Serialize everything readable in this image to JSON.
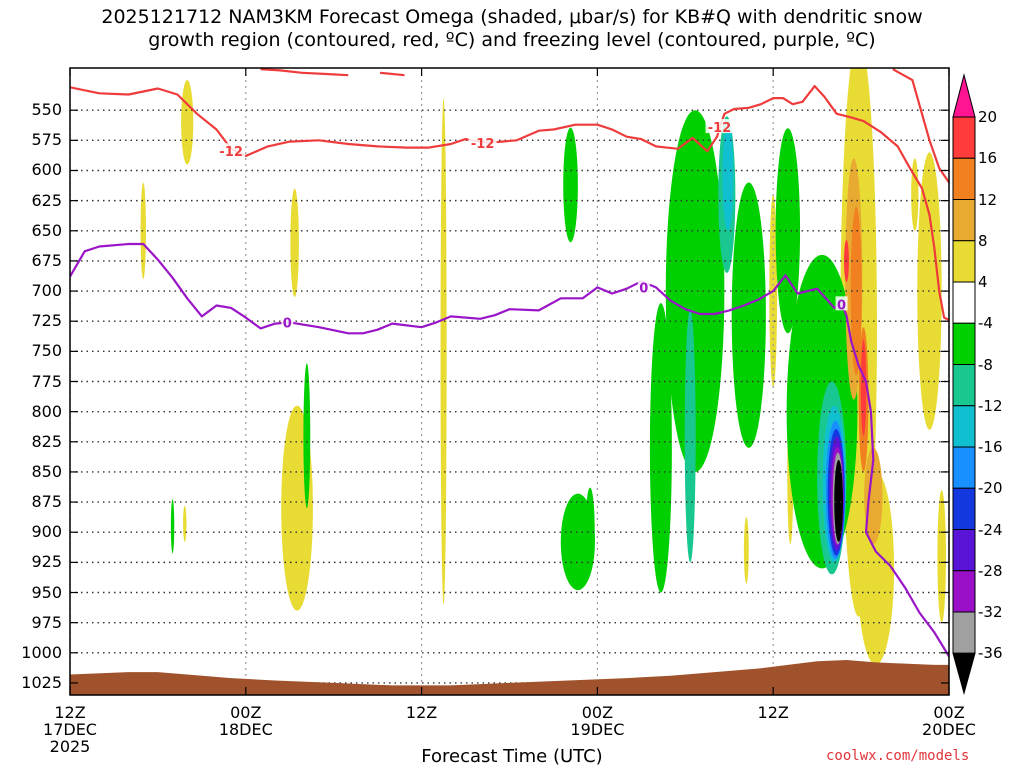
{
  "header": {
    "line1": "2025121712 NAM3KM Forecast Omega (shaded, μbar/s) for KB#Q with dendritic snow",
    "line2": "growth region (contoured, red, ºC) and freezing level (contoured, purple, ºC)"
  },
  "footer": {
    "xaxis_title": "Forecast Time (UTC)",
    "credit": "coolwx.com/models"
  },
  "colors": {
    "dgz_line": "#ee3b3b",
    "freezing_line": "#9a14c8",
    "terrain": "#a0522d",
    "grid": "#333333"
  },
  "chart_data": {
    "type": "time-height cross-section (contour/heatmap)",
    "x_unit": "hours since 2025-12-17 12Z",
    "x_range": [
      0,
      36
    ],
    "y_unit": "hPa",
    "y_range": [
      1035,
      515
    ],
    "x_ticks": [
      {
        "hour": 0,
        "line1": "12Z",
        "line2": "17DEC",
        "line3": "2025"
      },
      {
        "hour": 7.2,
        "line1": "00Z",
        "line2": "18DEC",
        "line3": ""
      },
      {
        "hour": 14.4,
        "line1": "12Z",
        "line2": "",
        "line3": ""
      },
      {
        "hour": 21.6,
        "line1": "00Z",
        "line2": "19DEC",
        "line3": ""
      },
      {
        "hour": 28.8,
        "line1": "12Z",
        "line2": "",
        "line3": ""
      },
      {
        "hour": 36,
        "line1": "00Z",
        "line2": "20DEC",
        "line3": ""
      }
    ],
    "y_ticks": [
      "550",
      "575",
      "600",
      "625",
      "650",
      "675",
      "700",
      "725",
      "750",
      "775",
      "800",
      "825",
      "850",
      "875",
      "900",
      "925",
      "950",
      "975",
      "1000",
      "1025"
    ],
    "colorbar": {
      "labels": [
        "20",
        "16",
        "12",
        "8",
        "4",
        "-4",
        "-8",
        "-12",
        "-16",
        "-20",
        "-24",
        "-28",
        "-32",
        "-36"
      ],
      "bins": [
        {
          "min": 20,
          "max": 24,
          "color": "#ff1493"
        },
        {
          "min": 16,
          "max": 20,
          "color": "#ff3b3b"
        },
        {
          "min": 12,
          "max": 16,
          "color": "#f08020"
        },
        {
          "min": 8,
          "max": 12,
          "color": "#e8aa30"
        },
        {
          "min": 4,
          "max": 8,
          "color": "#e8dc34"
        },
        {
          "min": -4,
          "max": 4,
          "color": "#ffffff"
        },
        {
          "min": -8,
          "max": -4,
          "color": "#00d000"
        },
        {
          "min": -12,
          "max": -8,
          "color": "#18c890"
        },
        {
          "min": -16,
          "max": -12,
          "color": "#10c0d0"
        },
        {
          "min": -20,
          "max": -16,
          "color": "#1890ff"
        },
        {
          "min": -24,
          "max": -20,
          "color": "#1438e0"
        },
        {
          "min": -28,
          "max": -24,
          "color": "#5a14d8"
        },
        {
          "min": -32,
          "max": -28,
          "color": "#9a10c8"
        },
        {
          "min": -36,
          "max": -32,
          "color": "#a0a0a0"
        },
        {
          "min": -40,
          "max": -36,
          "color": "#000000"
        }
      ]
    },
    "omega_regions": [
      {
        "value": -8,
        "t": 30.8,
        "p": 800,
        "dt": 2.9,
        "dp": 260
      },
      {
        "value": -8,
        "t": 29.4,
        "p": 650,
        "dt": 1.0,
        "dp": 170
      },
      {
        "value": -8,
        "t": 25.6,
        "p": 700,
        "dt": 2.4,
        "dp": 300
      },
      {
        "value": -8,
        "t": 27.8,
        "p": 720,
        "dt": 1.4,
        "dp": 220
      },
      {
        "value": -8,
        "t": 24.2,
        "p": 830,
        "dt": 0.9,
        "dp": 240
      },
      {
        "value": -8,
        "t": 20.8,
        "p": 908,
        "dt": 1.4,
        "dp": 80
      },
      {
        "value": -8,
        "t": 20.5,
        "p": 612,
        "dt": 0.6,
        "dp": 95
      },
      {
        "value": -8,
        "t": 9.7,
        "p": 820,
        "dt": 0.28,
        "dp": 120
      },
      {
        "value": -8,
        "t": 21.3,
        "p": 898,
        "dt": 0.38,
        "dp": 70
      },
      {
        "value": -8,
        "t": 24.6,
        "p": 710,
        "dt": 0.32,
        "dp": 50
      },
      {
        "value": -8,
        "t": 4.2,
        "p": 895,
        "dt": 0.14,
        "dp": 45
      },
      {
        "value": -12,
        "t": 26.9,
        "p": 620,
        "dt": 0.7,
        "dp": 130
      },
      {
        "value": -12,
        "t": 25.4,
        "p": 820,
        "dt": 0.45,
        "dp": 210
      },
      {
        "value": -12,
        "t": 31.2,
        "p": 855,
        "dt": 1.2,
        "dp": 160
      },
      {
        "value": -16,
        "t": 26.95,
        "p": 605,
        "dt": 0.45,
        "dp": 90
      },
      {
        "value": -16,
        "t": 31.3,
        "p": 860,
        "dt": 0.95,
        "dp": 130
      },
      {
        "value": -20,
        "t": 31.35,
        "p": 865,
        "dt": 0.8,
        "dp": 115
      },
      {
        "value": -24,
        "t": 31.38,
        "p": 867,
        "dt": 0.7,
        "dp": 105
      },
      {
        "value": -28,
        "t": 31.4,
        "p": 868,
        "dt": 0.6,
        "dp": 95
      },
      {
        "value": -32,
        "t": 31.42,
        "p": 870,
        "dt": 0.5,
        "dp": 82
      },
      {
        "value": -36,
        "t": 31.45,
        "p": 872,
        "dt": 0.42,
        "dp": 76
      },
      {
        "value": -40,
        "t": 31.48,
        "p": 874,
        "dt": 0.36,
        "dp": 68
      },
      {
        "value": 4,
        "t": 4.8,
        "p": 560,
        "dt": 0.5,
        "dp": 70
      },
      {
        "value": 4,
        "t": 3.0,
        "p": 650,
        "dt": 0.22,
        "dp": 80
      },
      {
        "value": 4,
        "t": 9.2,
        "p": 660,
        "dt": 0.35,
        "dp": 90
      },
      {
        "value": 4,
        "t": 9.3,
        "p": 880,
        "dt": 1.3,
        "dp": 170
      },
      {
        "value": 4,
        "t": 15.3,
        "p": 750,
        "dt": 0.25,
        "dp": 420
      },
      {
        "value": 4,
        "t": 4.7,
        "p": 893,
        "dt": 0.14,
        "dp": 30
      },
      {
        "value": 4,
        "t": 27.7,
        "p": 915,
        "dt": 0.2,
        "dp": 55
      },
      {
        "value": 4,
        "t": 28.8,
        "p": 700,
        "dt": 0.32,
        "dp": 160
      },
      {
        "value": 4,
        "t": 29.5,
        "p": 850,
        "dt": 0.25,
        "dp": 120
      },
      {
        "value": 4,
        "t": 32.3,
        "p": 730,
        "dt": 1.5,
        "dp": 480
      },
      {
        "value": 4,
        "t": 33.0,
        "p": 930,
        "dt": 1.5,
        "dp": 160
      },
      {
        "value": 4,
        "t": 35.2,
        "p": 700,
        "dt": 1.0,
        "dp": 230
      },
      {
        "value": 4,
        "t": 34.6,
        "p": 620,
        "dt": 0.3,
        "dp": 60
      },
      {
        "value": 4,
        "t": 35.7,
        "p": 920,
        "dt": 0.35,
        "dp": 110
      },
      {
        "value": 8,
        "t": 32.1,
        "p": 690,
        "dt": 0.7,
        "dp": 200
      },
      {
        "value": 8,
        "t": 32.9,
        "p": 870,
        "dt": 0.75,
        "dp": 80
      },
      {
        "value": 12,
        "t": 32.2,
        "p": 700,
        "dt": 0.45,
        "dp": 140
      },
      {
        "value": 12,
        "t": 32.5,
        "p": 790,
        "dt": 0.4,
        "dp": 120
      },
      {
        "value": 16,
        "t": 31.8,
        "p": 675,
        "dt": 0.2,
        "dp": 35
      },
      {
        "value": 16,
        "t": 32.5,
        "p": 780,
        "dt": 0.22,
        "dp": 80
      }
    ],
    "series": [
      {
        "name": "dendritic snow growth region (-12 °C)",
        "color": "#ee3b3b",
        "label": "-12",
        "label_points": [
          {
            "t": 6.6,
            "p": 584
          },
          {
            "t": 16.9,
            "p": 577
          },
          {
            "t": 26.6,
            "p": 564
          }
        ],
        "segments": [
          [
            [
              0,
              531
            ],
            [
              1.2,
              536
            ],
            [
              2.4,
              537
            ],
            [
              3.6,
              532
            ],
            [
              4.4,
              537
            ],
            [
              5.2,
              553
            ],
            [
              6.0,
              566
            ],
            [
              6.6,
              582
            ],
            [
              7.2,
              588
            ],
            [
              8.1,
              580
            ],
            [
              9.0,
              576
            ],
            [
              10.2,
              575
            ],
            [
              11.4,
              578
            ],
            [
              12.6,
              580
            ],
            [
              13.8,
              581
            ],
            [
              14.7,
              581
            ],
            [
              15.6,
              578
            ],
            [
              16.2,
              574
            ],
            [
              17.1,
              577
            ],
            [
              18.3,
              575
            ],
            [
              19.2,
              567
            ],
            [
              19.8,
              566
            ],
            [
              20.7,
              562
            ],
            [
              21.6,
              562
            ],
            [
              22.2,
              566
            ],
            [
              22.8,
              572
            ],
            [
              23.4,
              574
            ],
            [
              24.0,
              580
            ],
            [
              24.9,
              582
            ],
            [
              25.5,
              573
            ],
            [
              26.1,
              584
            ],
            [
              26.5,
              572
            ],
            [
              26.8,
              553
            ],
            [
              27.2,
              549
            ],
            [
              27.8,
              548
            ],
            [
              28.3,
              545
            ],
            [
              28.8,
              540
            ],
            [
              29.2,
              540
            ],
            [
              29.6,
              545
            ],
            [
              30.0,
              543
            ],
            [
              30.5,
              530
            ],
            [
              30.9,
              539
            ],
            [
              31.4,
              553
            ],
            [
              32.0,
              556
            ],
            [
              32.5,
              559
            ],
            [
              33.2,
              568
            ],
            [
              33.9,
              580
            ],
            [
              34.4,
              598
            ],
            [
              34.9,
              615
            ],
            [
              35.2,
              637
            ],
            [
              35.4,
              664
            ],
            [
              35.6,
              700
            ],
            [
              35.8,
              722
            ],
            [
              36,
              724
            ]
          ],
          [
            [
              7.8,
              516
            ],
            [
              8.6,
              517
            ],
            [
              9.5,
              519
            ],
            [
              10.5,
              520
            ],
            [
              11.4,
              521
            ]
          ],
          [
            [
              12.7,
              519
            ],
            [
              13.7,
              521
            ]
          ],
          [
            [
              33.7,
              516
            ],
            [
              34.5,
              525
            ],
            [
              35.2,
              575
            ],
            [
              35.6,
              598
            ],
            [
              36,
              610
            ]
          ]
        ]
      },
      {
        "name": "freezing level (0 °C)",
        "color": "#9a14c8",
        "label": "0",
        "label_points": [
          {
            "t": 8.9,
            "p": 726
          },
          {
            "t": 23.5,
            "p": 697
          },
          {
            "t": 31.6,
            "p": 711
          }
        ],
        "segments": [
          [
            [
              0,
              688
            ],
            [
              0.6,
              667
            ],
            [
              1.2,
              663
            ],
            [
              2.4,
              661
            ],
            [
              3.0,
              661
            ],
            [
              3.6,
              674
            ],
            [
              4.2,
              689
            ],
            [
              4.8,
              706
            ],
            [
              5.4,
              721
            ],
            [
              6.0,
              712
            ],
            [
              6.6,
              714
            ],
            [
              7.2,
              722
            ],
            [
              7.8,
              731
            ],
            [
              8.4,
              727
            ],
            [
              9.0,
              726
            ],
            [
              10.2,
              730
            ],
            [
              11.4,
              735
            ],
            [
              12.0,
              735
            ],
            [
              12.6,
              732
            ],
            [
              13.2,
              727
            ],
            [
              14.4,
              730
            ],
            [
              15.0,
              726
            ],
            [
              15.6,
              721
            ],
            [
              16.8,
              723
            ],
            [
              17.4,
              720
            ],
            [
              18.0,
              715
            ],
            [
              19.2,
              716
            ],
            [
              20.1,
              706
            ],
            [
              21.0,
              706
            ],
            [
              21.6,
              697
            ],
            [
              22.2,
              702
            ],
            [
              22.8,
              698
            ],
            [
              23.4,
              692
            ],
            [
              24.0,
              697
            ],
            [
              24.6,
              708
            ],
            [
              25.2,
              715
            ],
            [
              25.8,
              719
            ],
            [
              26.4,
              719
            ],
            [
              27.0,
              716
            ],
            [
              27.6,
              712
            ],
            [
              28.2,
              707
            ],
            [
              28.8,
              700
            ],
            [
              29.3,
              687
            ],
            [
              29.8,
              702
            ],
            [
              30.2,
              700
            ],
            [
              30.6,
              698
            ],
            [
              31.0,
              707
            ],
            [
              31.3,
              714
            ],
            [
              31.6,
              711
            ],
            [
              31.8,
              720
            ],
            [
              32.0,
              742
            ],
            [
              32.3,
              762
            ],
            [
              32.6,
              775
            ],
            [
              32.8,
              800
            ],
            [
              32.9,
              840
            ],
            [
              32.7,
              875
            ],
            [
              32.6,
              900
            ],
            [
              33.0,
              916
            ],
            [
              33.6,
              928
            ],
            [
              34.2,
              946
            ],
            [
              34.8,
              967
            ],
            [
              35.4,
              983
            ],
            [
              36,
              1003
            ]
          ]
        ]
      }
    ],
    "terrain": {
      "color": "#a0522d",
      "points": [
        [
          0,
          1018
        ],
        [
          2.4,
          1016
        ],
        [
          3.6,
          1016
        ],
        [
          4.8,
          1018
        ],
        [
          6.6,
          1021
        ],
        [
          8.4,
          1023
        ],
        [
          10.8,
          1025
        ],
        [
          13.2,
          1027
        ],
        [
          15.6,
          1027
        ],
        [
          18.0,
          1025
        ],
        [
          20.4,
          1023
        ],
        [
          22.8,
          1021
        ],
        [
          24.6,
          1019
        ],
        [
          26.4,
          1016
        ],
        [
          28.2,
          1013
        ],
        [
          29.4,
          1010
        ],
        [
          30.6,
          1007
        ],
        [
          31.8,
          1006
        ],
        [
          33.0,
          1008
        ],
        [
          34.2,
          1009
        ],
        [
          35.4,
          1010
        ],
        [
          36,
          1010
        ]
      ]
    }
  }
}
